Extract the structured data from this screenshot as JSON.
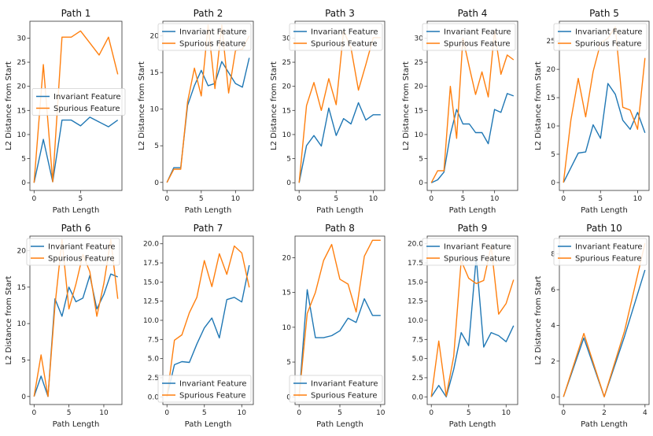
{
  "figure": {
    "colors": {
      "invariant": "#1f77b4",
      "spurious": "#ff7f0e"
    }
  },
  "chart_data": [
    {
      "type": "line",
      "title": "Path 1",
      "xlabel": "Path Length",
      "ylabel": "L2 Distance from Start",
      "xlim": [
        -0.45,
        9.45
      ],
      "ylim": [
        -1.6,
        33.5
      ],
      "xticks": [
        0,
        5
      ],
      "yticks": [
        0,
        5,
        10,
        15,
        20,
        25,
        30
      ],
      "legend": {
        "position": "center-left"
      },
      "series": [
        {
          "name": "Invariant Feature",
          "x": [
            0,
            1,
            2,
            3,
            4,
            5,
            6,
            7,
            8,
            9
          ],
          "y": [
            0,
            9,
            0.2,
            13,
            13,
            11.8,
            13.6,
            12.6,
            11.6,
            13
          ]
        },
        {
          "name": "Spurious Feature",
          "x": [
            0,
            1,
            2,
            3,
            4,
            5,
            6,
            7,
            8,
            9
          ],
          "y": [
            0,
            24.5,
            0.2,
            30.2,
            30.2,
            31.5,
            29,
            26.5,
            30.2,
            22.5
          ]
        }
      ]
    },
    {
      "type": "line",
      "title": "Path 2",
      "xlabel": "Path Length",
      "ylabel": "L2 Distance from Start",
      "xlim": [
        -0.6,
        12.6
      ],
      "ylim": [
        -1.1,
        22.0
      ],
      "xticks": [
        0,
        5,
        10
      ],
      "yticks": [
        0,
        5,
        10,
        15,
        20
      ],
      "legend": {
        "position": "top-right"
      },
      "series": [
        {
          "name": "Invariant Feature",
          "x": [
            0,
            1,
            2,
            3,
            4,
            5,
            6,
            7,
            8,
            9,
            10,
            11,
            12
          ],
          "y": [
            0,
            2,
            2,
            10.5,
            13.2,
            15.3,
            13.2,
            13.5,
            16.5,
            15,
            13.5,
            13,
            17
          ]
        },
        {
          "name": "Spurious Feature",
          "x": [
            0,
            1,
            2,
            3,
            4,
            5,
            6,
            7,
            8,
            9,
            10,
            11,
            12
          ],
          "y": [
            0,
            1.8,
            1.8,
            11,
            15.6,
            11.8,
            21.5,
            12.8,
            21.5,
            12.2,
            18,
            18.2,
            20
          ]
        }
      ]
    },
    {
      "type": "line",
      "title": "Path 3",
      "xlabel": "Path Length",
      "ylabel": "L2 Distance from Start",
      "xlim": [
        -0.55,
        11.55
      ],
      "ylim": [
        -1.6,
        33.5
      ],
      "xticks": [
        0,
        5,
        10
      ],
      "yticks": [
        0,
        5,
        10,
        15,
        20,
        25,
        30
      ],
      "legend": {
        "position": "top-right"
      },
      "series": [
        {
          "name": "Invariant Feature",
          "x": [
            0,
            1,
            2,
            3,
            4,
            5,
            6,
            7,
            8,
            9,
            10,
            11
          ],
          "y": [
            0,
            7.7,
            9.8,
            7.6,
            15.5,
            9.8,
            13.3,
            12.2,
            16.6,
            13,
            14.1,
            14.1
          ]
        },
        {
          "name": "Spurious Feature",
          "x": [
            0,
            1,
            2,
            3,
            4,
            5,
            6,
            7,
            8,
            9,
            10,
            11
          ],
          "y": [
            0,
            16,
            20.8,
            15,
            21.6,
            16.2,
            31.5,
            28,
            19.2,
            24.5,
            30.1,
            30.1
          ]
        }
      ]
    },
    {
      "type": "line",
      "title": "Path 4",
      "xlabel": "Path Length",
      "ylabel": "L2 Distance from Start",
      "xlim": [
        -0.65,
        13.65
      ],
      "ylim": [
        -1.6,
        33.5
      ],
      "xticks": [
        0,
        5,
        10
      ],
      "yticks": [
        0,
        5,
        10,
        15,
        20,
        25,
        30
      ],
      "legend": {
        "position": "top-right"
      },
      "series": [
        {
          "name": "Invariant Feature",
          "x": [
            0,
            1,
            2,
            3,
            4,
            5,
            6,
            7,
            8,
            9,
            10,
            11,
            12,
            13
          ],
          "y": [
            0,
            0.6,
            2.2,
            10,
            15.2,
            12.2,
            12.2,
            10.4,
            10.4,
            8.1,
            15.2,
            14.6,
            18.5,
            18
          ]
        },
        {
          "name": "Spurious Feature",
          "x": [
            0,
            1,
            2,
            3,
            4,
            5,
            6,
            7,
            8,
            9,
            10,
            11,
            12,
            13
          ],
          "y": [
            0,
            2.5,
            2.5,
            20,
            9.2,
            30,
            24,
            18.3,
            23,
            17.8,
            31.5,
            22.5,
            26.5,
            25.5
          ]
        }
      ]
    },
    {
      "type": "line",
      "title": "Path 5",
      "xlabel": "Path Length",
      "ylabel": "L2 Distance from Start",
      "xlim": [
        -0.55,
        11.55
      ],
      "ylim": [
        -1.4,
        28.5
      ],
      "xticks": [
        0,
        5,
        10
      ],
      "yticks": [
        0,
        5,
        10,
        15,
        20,
        25
      ],
      "legend": {
        "position": "top-right"
      },
      "series": [
        {
          "name": "Invariant Feature",
          "x": [
            0,
            1,
            2,
            3,
            4,
            5,
            6,
            7,
            8,
            9,
            10,
            11
          ],
          "y": [
            0,
            2.6,
            5.2,
            5.4,
            10.2,
            7.8,
            17.5,
            15.6,
            11,
            9.4,
            12.4,
            8.8
          ]
        },
        {
          "name": "Spurious Feature",
          "x": [
            0,
            1,
            2,
            3,
            4,
            5,
            6,
            7,
            8,
            9,
            10,
            11
          ],
          "y": [
            0,
            11,
            18.4,
            11.6,
            19.6,
            24.6,
            25.5,
            27.5,
            13.3,
            12.8,
            9.4,
            22
          ]
        }
      ]
    },
    {
      "type": "line",
      "title": "Path 6",
      "xlabel": "Path Length",
      "ylabel": "L2 Distance from Start",
      "xlim": [
        -0.6,
        12.6
      ],
      "ylim": [
        -1.1,
        22.0
      ],
      "xticks": [
        0,
        5,
        10
      ],
      "yticks": [
        0,
        5,
        10,
        15,
        20
      ],
      "legend": {
        "position": "top-right"
      },
      "series": [
        {
          "name": "Invariant Feature",
          "x": [
            0,
            1,
            2,
            3,
            4,
            5,
            6,
            7,
            8,
            9,
            10,
            11,
            12
          ],
          "y": [
            0,
            2.8,
            0,
            13.4,
            11,
            15,
            13,
            13.5,
            16.6,
            12,
            14,
            16.8,
            16.4
          ]
        },
        {
          "name": "Spurious Feature",
          "x": [
            0,
            1,
            2,
            3,
            4,
            5,
            6,
            7,
            8,
            9,
            10,
            11,
            12
          ],
          "y": [
            0,
            5.7,
            0,
            12.5,
            21.5,
            12,
            15.4,
            19.5,
            17.1,
            11,
            15.5,
            21.5,
            13.4
          ]
        }
      ]
    },
    {
      "type": "line",
      "title": "Path 7",
      "xlabel": "Path Length",
      "ylabel": "",
      "xlim": [
        -0.55,
        11.55
      ],
      "ylim": [
        -1.0,
        21.0
      ],
      "xticks": [
        0,
        5,
        10
      ],
      "yticks": [
        0.0,
        2.5,
        5.0,
        7.5,
        10.0,
        12.5,
        15.0,
        17.5,
        20.0
      ],
      "ytick_labels": [
        "0.0",
        "2.5",
        "5.0",
        "7.5",
        "10.0",
        "12.5",
        "15.0",
        "17.5",
        "20.0"
      ],
      "legend": {
        "position": "bottom-right"
      },
      "series": [
        {
          "name": "Invariant Feature",
          "x": [
            0,
            1,
            2,
            3,
            4,
            5,
            6,
            7,
            8,
            9,
            10,
            11
          ],
          "y": [
            0,
            4.2,
            4.6,
            4.5,
            6.9,
            9,
            10.3,
            7.7,
            12.7,
            13,
            12.4,
            17.2
          ]
        },
        {
          "name": "Spurious Feature",
          "x": [
            0,
            1,
            2,
            3,
            4,
            5,
            6,
            7,
            8,
            9,
            10,
            11
          ],
          "y": [
            0,
            7.4,
            8.1,
            11,
            13,
            17.8,
            14.4,
            18.7,
            16,
            19.7,
            18.8,
            14.3
          ]
        }
      ]
    },
    {
      "type": "line",
      "title": "Path 8",
      "xlabel": "Path Length",
      "ylabel": "",
      "xlim": [
        -0.5,
        10.5
      ],
      "ylim": [
        -1.1,
        23.1
      ],
      "xticks": [
        0,
        5,
        10
      ],
      "yticks": [
        0,
        5,
        10,
        15,
        20
      ],
      "legend": {
        "position": "bottom-right"
      },
      "series": [
        {
          "name": "Invariant Feature",
          "x": [
            0,
            1,
            2,
            3,
            4,
            5,
            6,
            7,
            8,
            9,
            10
          ],
          "y": [
            0,
            15.4,
            8.5,
            8.5,
            8.8,
            9.5,
            11.3,
            10.7,
            14.1,
            11.7,
            11.7
          ]
        },
        {
          "name": "Spurious Feature",
          "x": [
            0,
            1,
            2,
            3,
            4,
            5,
            6,
            7,
            8,
            9,
            10
          ],
          "y": [
            0,
            12,
            15,
            19.6,
            21.9,
            16.9,
            16.2,
            12.2,
            20.2,
            22.5,
            22.5
          ]
        }
      ]
    },
    {
      "type": "line",
      "title": "Path 9",
      "xlabel": "Path Length",
      "ylabel": "",
      "xlim": [
        -0.55,
        11.55
      ],
      "ylim": [
        -1.0,
        21.0
      ],
      "xticks": [
        0,
        5,
        10
      ],
      "yticks": [
        0.0,
        2.5,
        5.0,
        7.5,
        10.0,
        12.5,
        15.0,
        17.5,
        20.0
      ],
      "ytick_labels": [
        "0.0",
        "2.5",
        "5.0",
        "7.5",
        "10.0",
        "12.5",
        "15.0",
        "17.5",
        "20.0"
      ],
      "legend": {
        "position": "top-right"
      },
      "series": [
        {
          "name": "Invariant Feature",
          "x": [
            0,
            1,
            2,
            3,
            4,
            5,
            6,
            7,
            8,
            9,
            10,
            11
          ],
          "y": [
            0,
            1.5,
            0,
            3.6,
            8.4,
            6.7,
            18.2,
            6.5,
            8.4,
            8,
            7.2,
            9.3
          ]
        },
        {
          "name": "Spurious Feature",
          "x": [
            0,
            1,
            2,
            3,
            4,
            5,
            6,
            7,
            8,
            9,
            10,
            11
          ],
          "y": [
            0,
            7.3,
            0.1,
            5.3,
            17.8,
            15.5,
            14.8,
            15.2,
            19.7,
            10.8,
            12.2,
            15.3
          ]
        }
      ]
    },
    {
      "type": "line",
      "title": "Path 10",
      "xlabel": "Path Length",
      "ylabel": "L2 Distance from Start",
      "xlim": [
        -0.2,
        4.2
      ],
      "ylim": [
        -0.43,
        9.0
      ],
      "xticks": [
        0,
        2,
        4
      ],
      "yticks": [
        0,
        2,
        4,
        6,
        8
      ],
      "legend": {
        "position": "top-right"
      },
      "series": [
        {
          "name": "Invariant Feature",
          "x": [
            0,
            1,
            2,
            3,
            4
          ],
          "y": [
            0,
            3.3,
            0,
            3.4,
            7.1
          ]
        },
        {
          "name": "Spurious Feature",
          "x": [
            0,
            1,
            2,
            3,
            4
          ],
          "y": [
            0,
            3.55,
            0,
            3.7,
            8.6
          ]
        }
      ]
    }
  ]
}
